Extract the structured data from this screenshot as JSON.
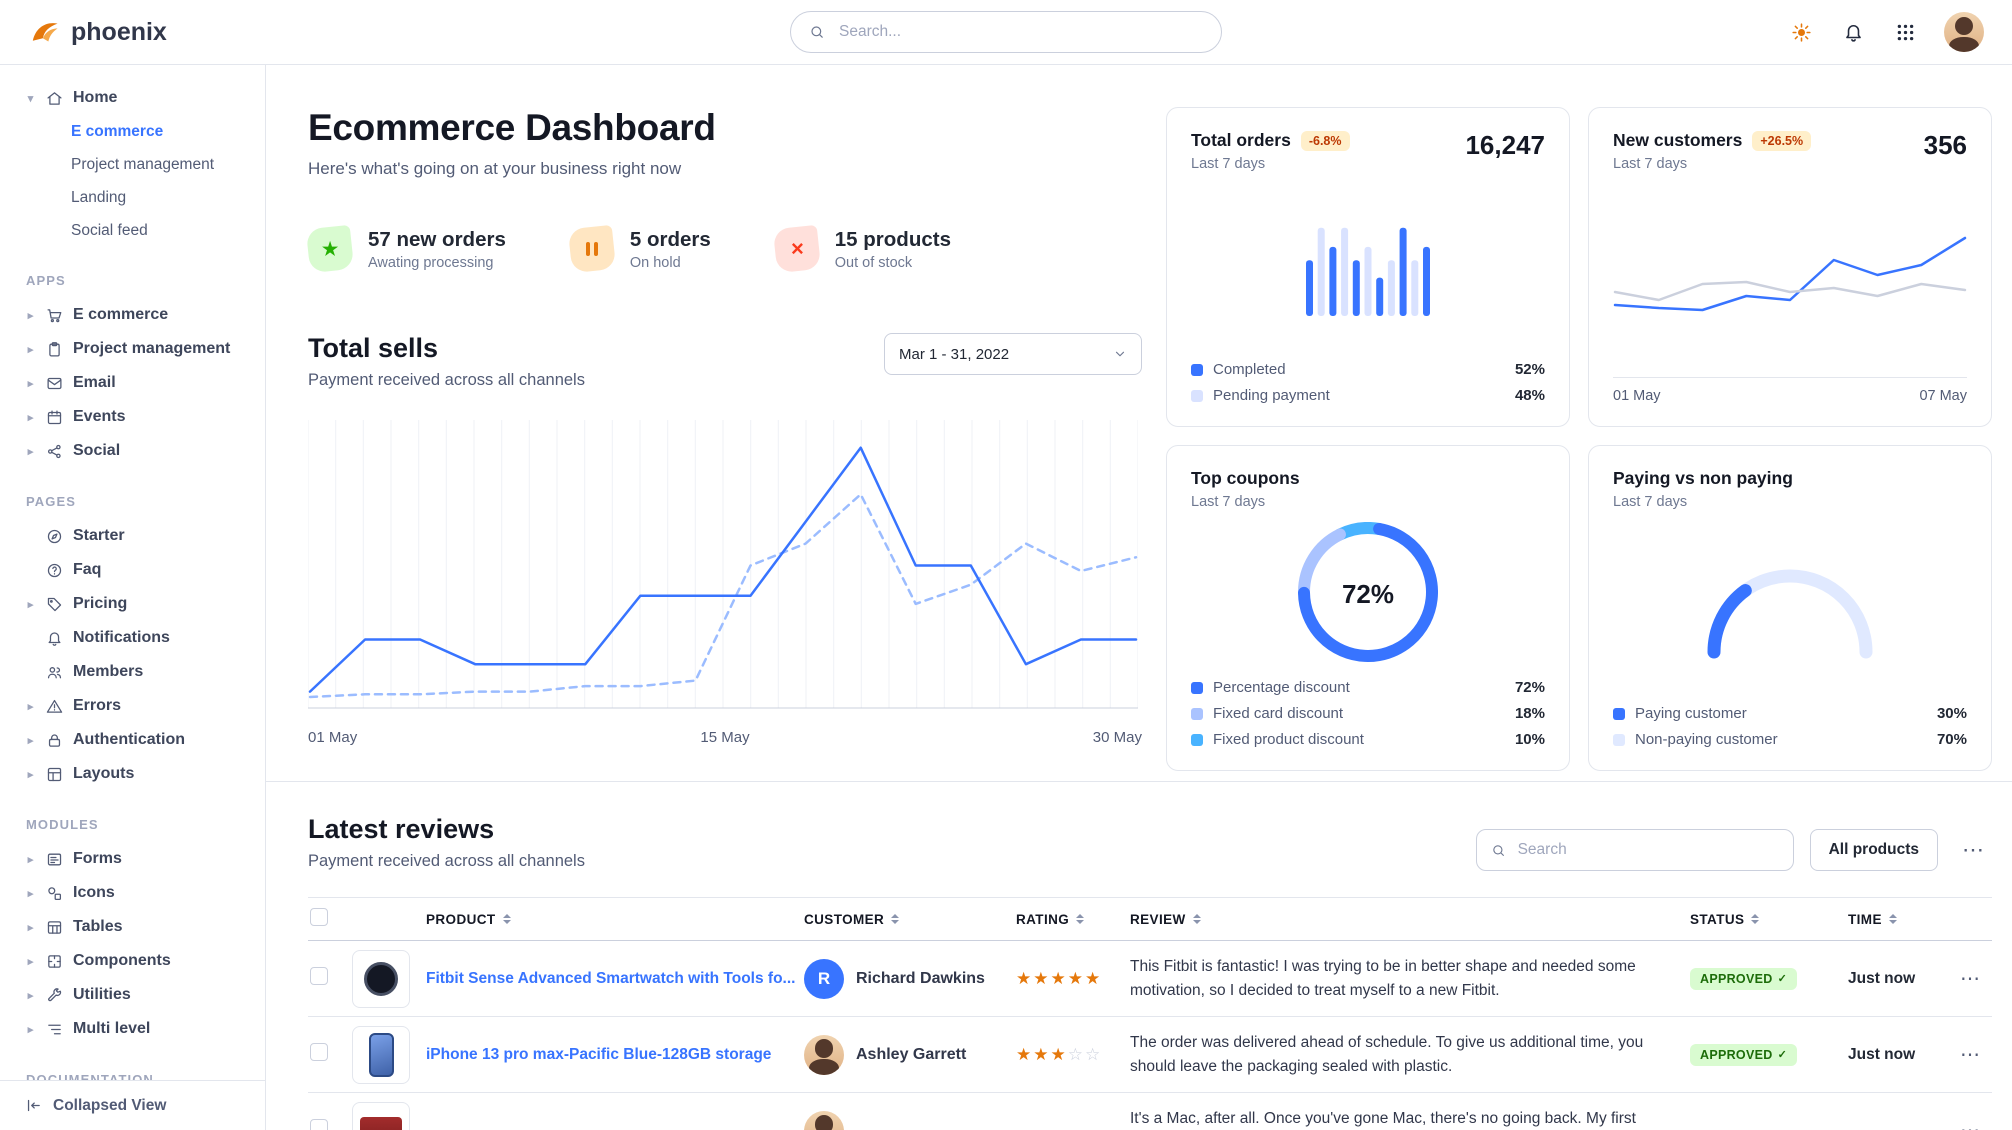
{
  "navbar": {
    "brand": "phoenix",
    "search_placeholder": "Search...",
    "icons": [
      "sun-icon",
      "bell-icon",
      "grid-icon",
      "user-avatar"
    ]
  },
  "sidebar": {
    "sections": [
      {
        "label": "",
        "items": [
          {
            "label": "Home",
            "icon": "house",
            "caret": "down",
            "children": [
              {
                "label": "E commerce",
                "active": true
              },
              {
                "label": "Project management"
              },
              {
                "label": "Landing"
              },
              {
                "label": "Social feed"
              }
            ]
          }
        ]
      },
      {
        "label": "APPS",
        "items": [
          {
            "label": "E commerce",
            "icon": "cart",
            "caret": "right"
          },
          {
            "label": "Project management",
            "icon": "clipboard",
            "caret": "right"
          },
          {
            "label": "Email",
            "icon": "envelope",
            "caret": "right"
          },
          {
            "label": "Events",
            "icon": "calendar",
            "caret": "right"
          },
          {
            "label": "Social",
            "icon": "share",
            "caret": "right"
          }
        ]
      },
      {
        "label": "PAGES",
        "items": [
          {
            "label": "Starter",
            "icon": "compass"
          },
          {
            "label": "Faq",
            "icon": "question"
          },
          {
            "label": "Pricing",
            "icon": "tag",
            "caret": "right"
          },
          {
            "label": "Notifications",
            "icon": "bell"
          },
          {
            "label": "Members",
            "icon": "users"
          },
          {
            "label": "Errors",
            "icon": "warning",
            "caret": "right"
          },
          {
            "label": "Authentication",
            "icon": "lock",
            "caret": "right"
          },
          {
            "label": "Layouts",
            "icon": "layout",
            "caret": "right"
          }
        ]
      },
      {
        "label": "MODULES",
        "items": [
          {
            "label": "Forms",
            "icon": "form",
            "caret": "right"
          },
          {
            "label": "Icons",
            "icon": "shapes",
            "caret": "right"
          },
          {
            "label": "Tables",
            "icon": "table",
            "caret": "right"
          },
          {
            "label": "Components",
            "icon": "puzzle",
            "caret": "right"
          },
          {
            "label": "Utilities",
            "icon": "wrench",
            "caret": "right"
          },
          {
            "label": "Multi level",
            "icon": "list",
            "caret": "right"
          }
        ]
      },
      {
        "label": "DOCUMENTATION",
        "items": []
      }
    ],
    "footer": {
      "label": "Collapsed View",
      "icon": "collapse"
    }
  },
  "header": {
    "title": "Ecommerce Dashboard",
    "subtitle": "Here's what's going on at your business right now"
  },
  "stats": [
    {
      "icon": "star",
      "tone": "success",
      "value": "57 new orders",
      "caption": "Awating processing"
    },
    {
      "icon": "pause",
      "tone": "warning",
      "value": "5 orders",
      "caption": "On hold"
    },
    {
      "icon": "x",
      "tone": "danger",
      "value": "15 products",
      "caption": "Out of stock"
    }
  ],
  "total_sells": {
    "title": "Total sells",
    "subtitle": "Payment received across all channels",
    "date_range": "Mar 1 - 31, 2022",
    "chart": {
      "type": "line",
      "x_labels": [
        "01 May",
        "15 May",
        "30 May"
      ],
      "ylim": [
        0,
        100
      ],
      "grid": "vertical",
      "series": [
        {
          "name": "sells-current",
          "style": "solid",
          "color": "#3874ff",
          "values": [
            6,
            25,
            25,
            16,
            16,
            16,
            41,
            41,
            41,
            68,
            95,
            52,
            52,
            16,
            25,
            25
          ]
        },
        {
          "name": "sells-previous",
          "style": "dashed",
          "color": "#9bbcff",
          "values": [
            4,
            5,
            5,
            6,
            6,
            8,
            8,
            10,
            52,
            60,
            78,
            38,
            45,
            60,
            50,
            55
          ]
        }
      ]
    }
  },
  "cards": {
    "total_orders": {
      "title": "Total orders",
      "badge": "-6.8%",
      "period": "Last 7 days",
      "value": "16,247",
      "chart": {
        "type": "bar",
        "values": [
          58,
          92,
          72,
          92,
          58,
          72,
          40,
          58,
          92,
          58,
          72
        ],
        "bar_colors": [
          "#3874ff",
          "#d9e2ff",
          "#3874ff",
          "#d9e2ff",
          "#3874ff",
          "#d9e2ff",
          "#3874ff",
          "#d9e2ff",
          "#3874ff",
          "#d9e2ff",
          "#3874ff"
        ]
      },
      "legend": [
        {
          "label": "Completed",
          "value": "52%",
          "color": "#3874ff"
        },
        {
          "label": "Pending payment",
          "value": "48%",
          "color": "#d9e2ff"
        }
      ]
    },
    "new_customers": {
      "title": "New customers",
      "badge": "+26.5%",
      "period": "Last 7 days",
      "value": "356",
      "x_labels": [
        "01 May",
        "07 May"
      ],
      "chart": {
        "type": "line",
        "series": [
          {
            "name": "previous",
            "style": "solid",
            "color": "#cbd0dd",
            "values": [
              38,
              30,
              46,
              48,
              38,
              42,
              34,
              46,
              40
            ]
          },
          {
            "name": "current",
            "style": "solid",
            "color": "#3874ff",
            "values": [
              25,
              22,
              20,
              34,
              30,
              70,
              55,
              65,
              92
            ]
          }
        ]
      }
    },
    "top_coupons": {
      "title": "Top coupons",
      "period": "Last 7 days",
      "center_label": "72%",
      "chart_type": "donut",
      "segments": [
        {
          "label": "Percentage discount",
          "pct": 72,
          "value": "72%",
          "color": "#3874ff"
        },
        {
          "label": "Fixed card discount",
          "pct": 18,
          "value": "18%",
          "color": "#aac3ff"
        },
        {
          "label": "Fixed product discount",
          "pct": 10,
          "value": "10%",
          "color": "#49b3ff"
        }
      ]
    },
    "paying": {
      "title": "Paying vs non paying",
      "period": "Last 7 days",
      "chart_type": "gauge",
      "segments": [
        {
          "label": "Paying customer",
          "pct": 30,
          "value": "30%",
          "color": "#3874ff"
        },
        {
          "label": "Non-paying customer",
          "pct": 70,
          "value": "70%",
          "color": "#e0e9ff"
        }
      ]
    }
  },
  "reviews": {
    "title": "Latest reviews",
    "subtitle": "Payment received across all channels",
    "search_placeholder": "Search",
    "filter_label": "All products",
    "more_label": "⋯",
    "columns": [
      "PRODUCT",
      "CUSTOMER",
      "RATING",
      "REVIEW",
      "STATUS",
      "TIME"
    ],
    "rows": [
      {
        "product": "Fitbit Sense Advanced Smartwatch with Tools fo...",
        "thumb": "smartwatch-thumb",
        "customer": "Richard Dawkins",
        "avatar": "initial-R",
        "rating": 5,
        "review": "This Fitbit is fantastic! I was trying to be in better shape and needed some motivation, so I decided to treat myself to a new Fitbit.",
        "status": "APPROVED",
        "time": "Just now"
      },
      {
        "product": "iPhone 13 pro max-Pacific Blue-128GB storage",
        "thumb": "iphone-thumb",
        "customer": "Ashley Garrett",
        "avatar": "photo",
        "rating": 3,
        "review": "The order was delivered ahead of schedule. To give us additional time, you should leave the packaging sealed with plastic.",
        "status": "APPROVED",
        "time": "Just now"
      },
      {
        "product": "",
        "thumb": "macbook-thumb",
        "customer": "",
        "avatar": "photo",
        "rating": 0,
        "review": "It's a Mac, after all. Once you've gone Mac, there's no going back. My first Mac lasted...",
        "status": "",
        "time": ""
      }
    ]
  }
}
